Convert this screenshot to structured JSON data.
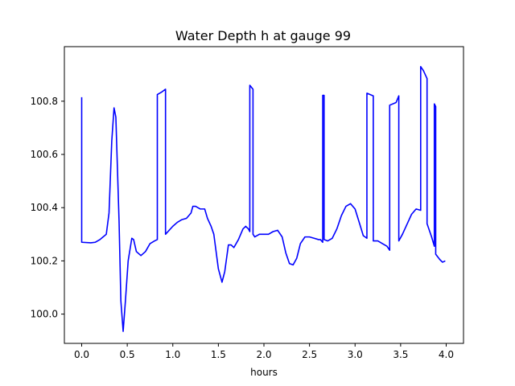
{
  "chart_data": {
    "type": "line",
    "title": "Water Depth h at gauge 99",
    "xlabel": "hours",
    "ylabel": "",
    "xlim": [
      -0.19,
      4.19
    ],
    "ylim": [
      99.89,
      101.005
    ],
    "xticks": [
      0.0,
      0.5,
      1.0,
      1.5,
      2.0,
      2.5,
      3.0,
      3.5,
      4.0
    ],
    "xtick_labels": [
      "0.0",
      "0.5",
      "1.0",
      "1.5",
      "2.0",
      "2.5",
      "3.0",
      "3.5",
      "4.0"
    ],
    "yticks": [
      100.0,
      100.2,
      100.4,
      100.6,
      100.8
    ],
    "ytick_labels": [
      "100.0",
      "100.2",
      "100.4",
      "100.6",
      "100.8"
    ],
    "grid": false,
    "legend": "none",
    "series": [
      {
        "color": "#0000ff",
        "points": [
          [
            0.0,
            100.815
          ],
          [
            0.0,
            100.27
          ],
          [
            0.1,
            100.268
          ],
          [
            0.15,
            100.27
          ],
          [
            0.2,
            100.28
          ],
          [
            0.27,
            100.3
          ],
          [
            0.3,
            100.38
          ],
          [
            0.33,
            100.65
          ],
          [
            0.355,
            100.775
          ],
          [
            0.375,
            100.74
          ],
          [
            0.41,
            100.35
          ],
          [
            0.43,
            100.05
          ],
          [
            0.455,
            99.935
          ],
          [
            0.48,
            100.05
          ],
          [
            0.51,
            100.2
          ],
          [
            0.55,
            100.285
          ],
          [
            0.57,
            100.28
          ],
          [
            0.6,
            100.235
          ],
          [
            0.65,
            100.22
          ],
          [
            0.7,
            100.235
          ],
          [
            0.75,
            100.265
          ],
          [
            0.8,
            100.275
          ],
          [
            0.83,
            100.28
          ],
          [
            0.83,
            100.825
          ],
          [
            0.88,
            100.835
          ],
          [
            0.92,
            100.845
          ],
          [
            0.92,
            100.3
          ],
          [
            1.0,
            100.33
          ],
          [
            1.05,
            100.345
          ],
          [
            1.1,
            100.355
          ],
          [
            1.15,
            100.36
          ],
          [
            1.2,
            100.38
          ],
          [
            1.22,
            100.405
          ],
          [
            1.25,
            100.405
          ],
          [
            1.3,
            100.395
          ],
          [
            1.35,
            100.395
          ],
          [
            1.38,
            100.36
          ],
          [
            1.42,
            100.33
          ],
          [
            1.45,
            100.3
          ],
          [
            1.5,
            100.17
          ],
          [
            1.54,
            100.12
          ],
          [
            1.57,
            100.16
          ],
          [
            1.61,
            100.26
          ],
          [
            1.64,
            100.26
          ],
          [
            1.67,
            100.25
          ],
          [
            1.72,
            100.28
          ],
          [
            1.77,
            100.32
          ],
          [
            1.8,
            100.33
          ],
          [
            1.83,
            100.32
          ],
          [
            1.845,
            100.31
          ],
          [
            1.845,
            100.86
          ],
          [
            1.88,
            100.845
          ],
          [
            1.88,
            100.3
          ],
          [
            1.9,
            100.29
          ],
          [
            1.95,
            100.3
          ],
          [
            2.05,
            100.3
          ],
          [
            2.1,
            100.31
          ],
          [
            2.15,
            100.315
          ],
          [
            2.2,
            100.29
          ],
          [
            2.24,
            100.23
          ],
          [
            2.28,
            100.19
          ],
          [
            2.32,
            100.185
          ],
          [
            2.36,
            100.21
          ],
          [
            2.4,
            100.265
          ],
          [
            2.45,
            100.29
          ],
          [
            2.5,
            100.29
          ],
          [
            2.55,
            100.285
          ],
          [
            2.6,
            100.28
          ],
          [
            2.62,
            100.28
          ],
          [
            2.645,
            100.27
          ],
          [
            2.645,
            100.822
          ],
          [
            2.66,
            100.822
          ],
          [
            2.66,
            100.28
          ],
          [
            2.7,
            100.275
          ],
          [
            2.75,
            100.285
          ],
          [
            2.8,
            100.32
          ],
          [
            2.85,
            100.37
          ],
          [
            2.9,
            100.405
          ],
          [
            2.95,
            100.415
          ],
          [
            3.0,
            100.395
          ],
          [
            3.05,
            100.34
          ],
          [
            3.09,
            100.295
          ],
          [
            3.13,
            100.285
          ],
          [
            3.13,
            100.83
          ],
          [
            3.2,
            100.82
          ],
          [
            3.2,
            100.275
          ],
          [
            3.25,
            100.275
          ],
          [
            3.3,
            100.265
          ],
          [
            3.35,
            100.255
          ],
          [
            3.38,
            100.24
          ],
          [
            3.38,
            100.785
          ],
          [
            3.45,
            100.795
          ],
          [
            3.48,
            100.82
          ],
          [
            3.48,
            100.275
          ],
          [
            3.52,
            100.3
          ],
          [
            3.58,
            100.345
          ],
          [
            3.62,
            100.375
          ],
          [
            3.67,
            100.395
          ],
          [
            3.72,
            100.39
          ],
          [
            3.72,
            100.93
          ],
          [
            3.75,
            100.915
          ],
          [
            3.79,
            100.885
          ],
          [
            3.79,
            100.34
          ],
          [
            3.84,
            100.29
          ],
          [
            3.87,
            100.255
          ],
          [
            3.87,
            100.79
          ],
          [
            3.885,
            100.78
          ],
          [
            3.885,
            100.225
          ],
          [
            3.93,
            100.205
          ],
          [
            3.96,
            100.195
          ],
          [
            3.99,
            100.2
          ]
        ]
      }
    ]
  }
}
